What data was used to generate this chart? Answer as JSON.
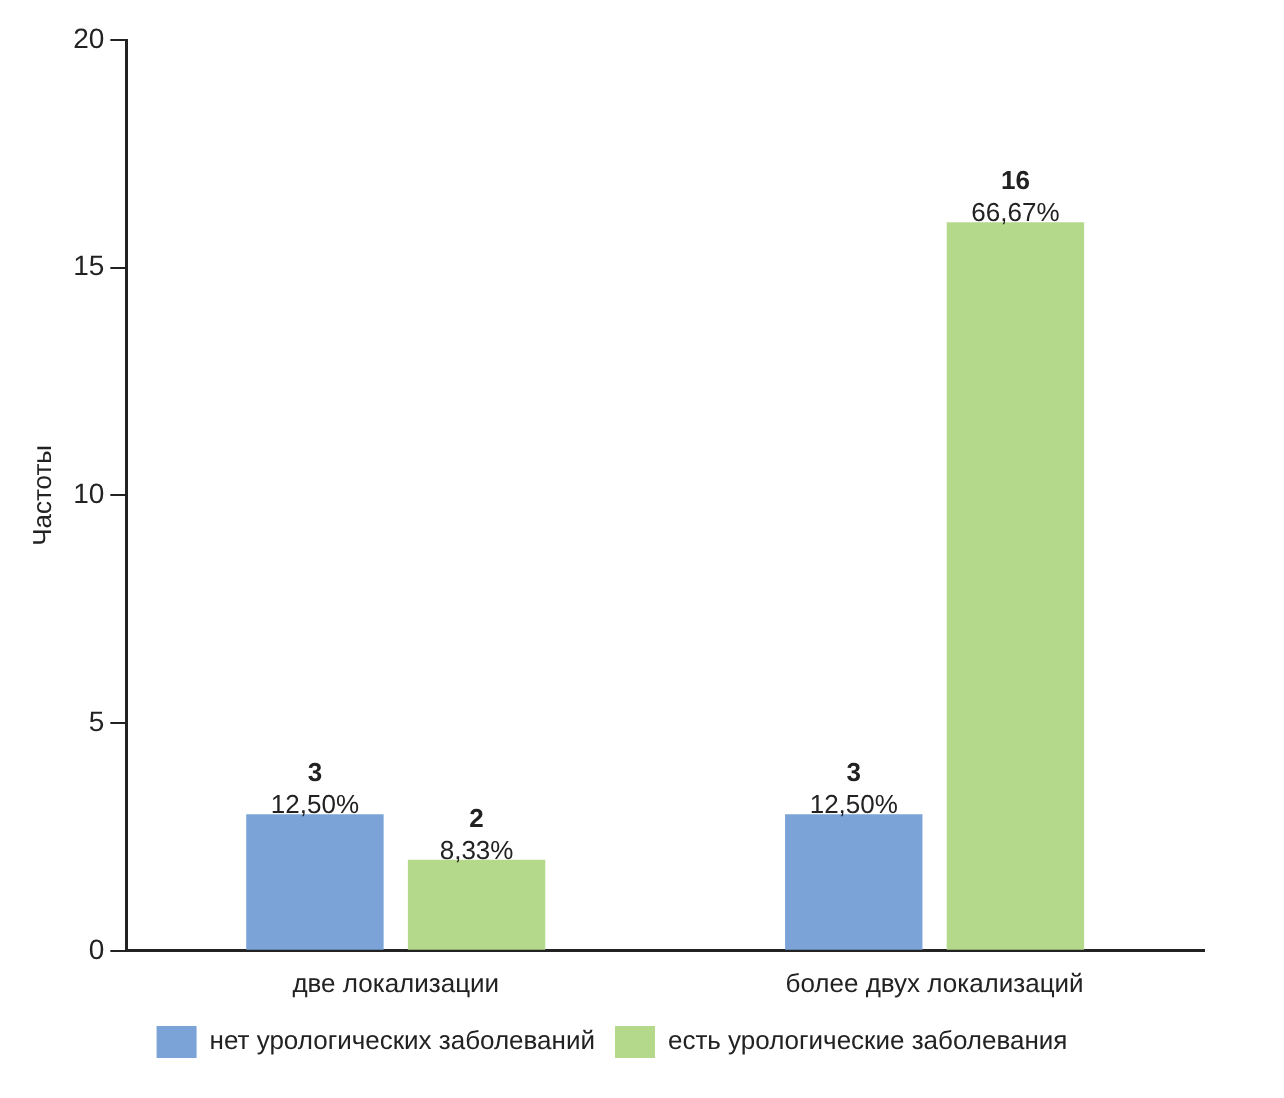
{
  "chart_data": {
    "type": "bar",
    "ylabel": "Частоты",
    "categories": [
      "две локализации",
      "более двух локализаций"
    ],
    "series": [
      {
        "name": "нет урологических заболеваний",
        "color": "#7ba3d8",
        "values": [
          3,
          3
        ]
      },
      {
        "name": "есть урологические заболевания",
        "color": "#b5d98a",
        "values": [
          2,
          16
        ]
      }
    ],
    "annotations": [
      "12,50%",
      "8,33%",
      "12,50%",
      "66,67%"
    ],
    "ylim": [
      0,
      20
    ],
    "yticks": [
      0,
      5,
      10,
      15,
      20
    ],
    "grid": false,
    "legend": "bottom",
    "data_labels": true
  }
}
